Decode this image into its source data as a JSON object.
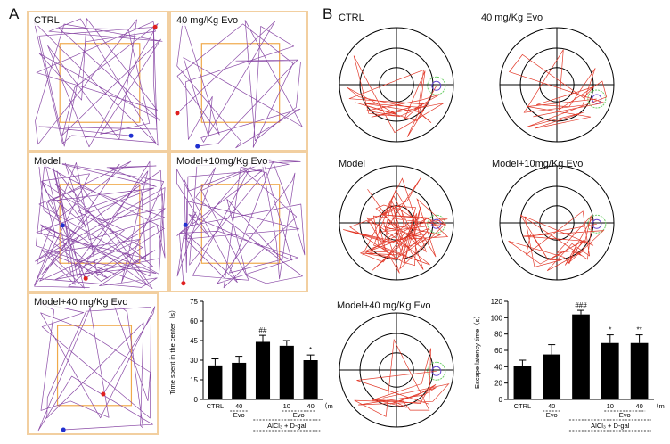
{
  "panel_a_letter": "A",
  "panel_b_letter": "B",
  "open_field": [
    {
      "label": "CTRL"
    },
    {
      "label": "40 mg/Kg Evo"
    },
    {
      "label": "Model"
    },
    {
      "label": "Model+10mg/Kg Evo"
    },
    {
      "label": "Model+40 mg/Kg Evo"
    }
  ],
  "water_maze": [
    {
      "label": "CTRL"
    },
    {
      "label": "40 mg/Kg Evo"
    },
    {
      "label": "Model"
    },
    {
      "label": "Model+10mg/Kg Evo"
    },
    {
      "label": "Model+40 mg/Kg  Evo"
    }
  ],
  "colors": {
    "box_border": "#f2cfa0",
    "inner_square": "#f0a94a",
    "of_track": "#8a4aa6",
    "mwm_track": "#e23a2a",
    "platform_outer": "#6fcf6a",
    "platform_inner": "#6a4ad0",
    "bar_fill": "#000000"
  },
  "chart_data": [
    {
      "type": "bar",
      "ylabel": "Time spent in the center（s）",
      "ylim": [
        0,
        75
      ],
      "yticks": [
        "0",
        "15",
        "30",
        "45",
        "60",
        "75"
      ],
      "categories": [
        "CTRL",
        "40",
        "",
        "10",
        "40"
      ],
      "values": [
        26,
        28,
        44,
        41,
        30
      ],
      "errors": [
        5,
        5,
        5,
        4,
        4
      ],
      "significance": [
        "",
        "",
        "##",
        "",
        "*"
      ],
      "group_labels": {
        "evo_left": "Evo",
        "evo_right": "Evo",
        "model": "AlCl₃ + D-gal",
        "unit": "（m"
      }
    },
    {
      "type": "bar",
      "ylabel": "Escape latency time（s）",
      "ylim": [
        0,
        120
      ],
      "yticks": [
        "0",
        "20",
        "40",
        "60",
        "80",
        "100",
        "120"
      ],
      "categories": [
        "CTRL",
        "40",
        "",
        "10",
        "40"
      ],
      "values": [
        41,
        55,
        104,
        69,
        69
      ],
      "errors": [
        7,
        12,
        5,
        10,
        10
      ],
      "significance": [
        "",
        "",
        "###",
        "*",
        "**"
      ],
      "group_labels": {
        "evo_left": "Evo",
        "evo_right": "Evo",
        "model": "AlCl₃ + D-gal",
        "unit": "（mg/kg）"
      }
    }
  ]
}
